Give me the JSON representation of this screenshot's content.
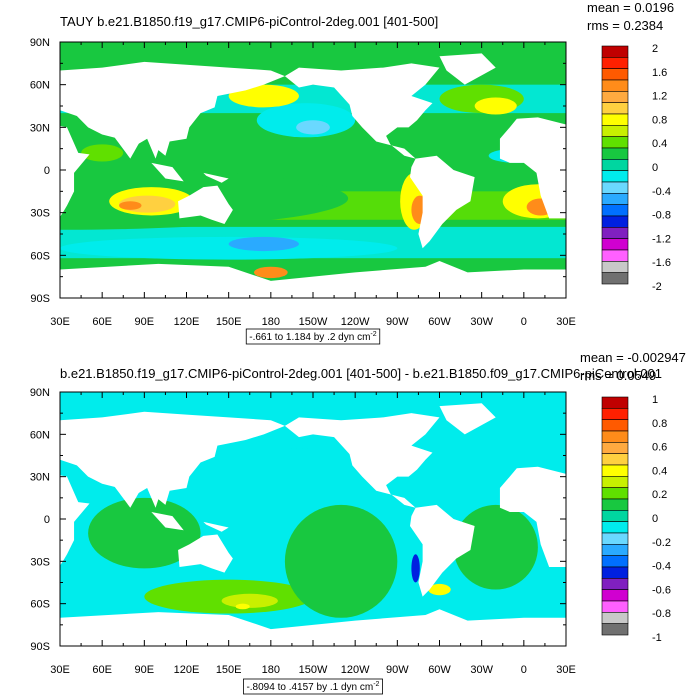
{
  "chart_data": [
    {
      "type": "heatmap",
      "variable": "TAUY",
      "title": "TAUY b.e21.B1850.f19_g17.CMIP6-piControl-2deg.001 [401-500]",
      "stats": {
        "mean": "mean = 0.0196",
        "rms": "rms = 0.2384"
      },
      "x_ticks": [
        "30E",
        "60E",
        "90E",
        "120E",
        "150E",
        "180",
        "150W",
        "120W",
        "90W",
        "60W",
        "30W",
        "0",
        "30E"
      ],
      "y_ticks": [
        "90N",
        "60N",
        "30N",
        "0",
        "30S",
        "60S",
        "90S"
      ],
      "contour_info": "-.661 to 1.184 by .2 dyn cm",
      "contour_unit_exp": "-2",
      "colorbar_levels": [
        "2",
        "1.6",
        "1.2",
        "0.8",
        "0.4",
        "0",
        "-0.4",
        "-0.8",
        "-1.2",
        "-1.6",
        "-2"
      ],
      "colorbar_all_levels": [
        2,
        1.8,
        1.6,
        1.4,
        1.2,
        1.0,
        0.8,
        0.6,
        0.4,
        0.2,
        0,
        -0.2,
        -0.4,
        -0.6,
        -0.8,
        -1.0,
        -1.2,
        -1.4,
        -1.6,
        -1.8,
        -2
      ],
      "colors": [
        "#c00000",
        "#ff2000",
        "#ff5a00",
        "#ff8c1a",
        "#ffaa40",
        "#ffd040",
        "#ffff00",
        "#c8f000",
        "#60e000",
        "#18c840",
        "#00d6a0",
        "#00ecec",
        "#6ad8ff",
        "#2aaaff",
        "#0070ff",
        "#0020e0",
        "#8020c0",
        "#d000d0",
        "#ff60ff",
        "#c8c8c8",
        "#707070"
      ],
      "range": [
        -0.661,
        1.184
      ]
    },
    {
      "type": "heatmap",
      "variable": "TAUY difference",
      "title": "b.e21.B1850.f19_g17.CMIP6-piControl-2deg.001 [401-500] - b.e21.B1850.f09_g17.CMIP6-piControl.001",
      "stats": {
        "mean": "mean = -0.002947",
        "rms": "rms = 0.0549"
      },
      "x_ticks": [
        "30E",
        "60E",
        "90E",
        "120E",
        "150E",
        "180",
        "150W",
        "120W",
        "90W",
        "60W",
        "30W",
        "0",
        "30E"
      ],
      "y_ticks": [
        "90N",
        "60N",
        "30N",
        "0",
        "30S",
        "60S",
        "90S"
      ],
      "contour_info": "-.8094 to .4157 by .1 dyn cm",
      "contour_unit_exp": "-2",
      "colorbar_levels": [
        "1",
        "0.8",
        "0.6",
        "0.4",
        "0.2",
        "0",
        "-0.2",
        "-0.4",
        "-0.6",
        "-0.8",
        "-1"
      ],
      "colors": [
        "#c00000",
        "#ff2000",
        "#ff5a00",
        "#ff8c1a",
        "#ffaa40",
        "#ffd040",
        "#ffff00",
        "#c8f000",
        "#60e000",
        "#18c840",
        "#00d6a0",
        "#00ecec",
        "#6ad8ff",
        "#2aaaff",
        "#0070ff",
        "#0020e0",
        "#8020c0",
        "#d000d0",
        "#ff60ff",
        "#c8c8c8",
        "#707070"
      ],
      "range": [
        -0.8094,
        0.4157
      ]
    }
  ]
}
